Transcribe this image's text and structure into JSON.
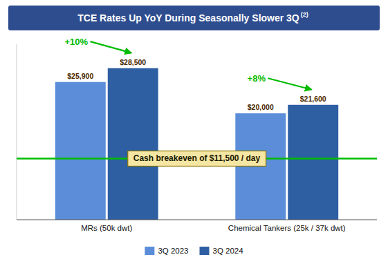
{
  "chart_data": {
    "type": "bar",
    "title": "TCE Rates Up YoY During Seasonally Slower 3Q",
    "title_superscript": "(2)",
    "categories": [
      "MRs (50k dwt)",
      "Chemical Tankers (25k / 37k dwt)"
    ],
    "series": [
      {
        "name": "3Q 2023",
        "color": "#5B8DD9",
        "values": [
          25900,
          20000
        ],
        "value_labels": [
          "$25,900",
          "$20,000"
        ]
      },
      {
        "name": "3Q 2024",
        "color": "#2E5FA3",
        "values": [
          28500,
          21600
        ],
        "value_labels": [
          "$28,500",
          "$21,600"
        ]
      }
    ],
    "annotations": [
      {
        "text": "+10%",
        "category": 0,
        "color": "#00BB00"
      },
      {
        "text": "+8%",
        "category": 1,
        "color": "#00BB00"
      }
    ],
    "reference_line": {
      "value": 11500,
      "label": "Cash breakeven of $11,500 / day",
      "color": "#00BB00",
      "box_color": "#F5E6A3"
    },
    "ylim": [
      0,
      33000
    ],
    "yticks": [],
    "grid": false,
    "legend": "bottom",
    "data_labels": true,
    "tick_labels": "x"
  }
}
